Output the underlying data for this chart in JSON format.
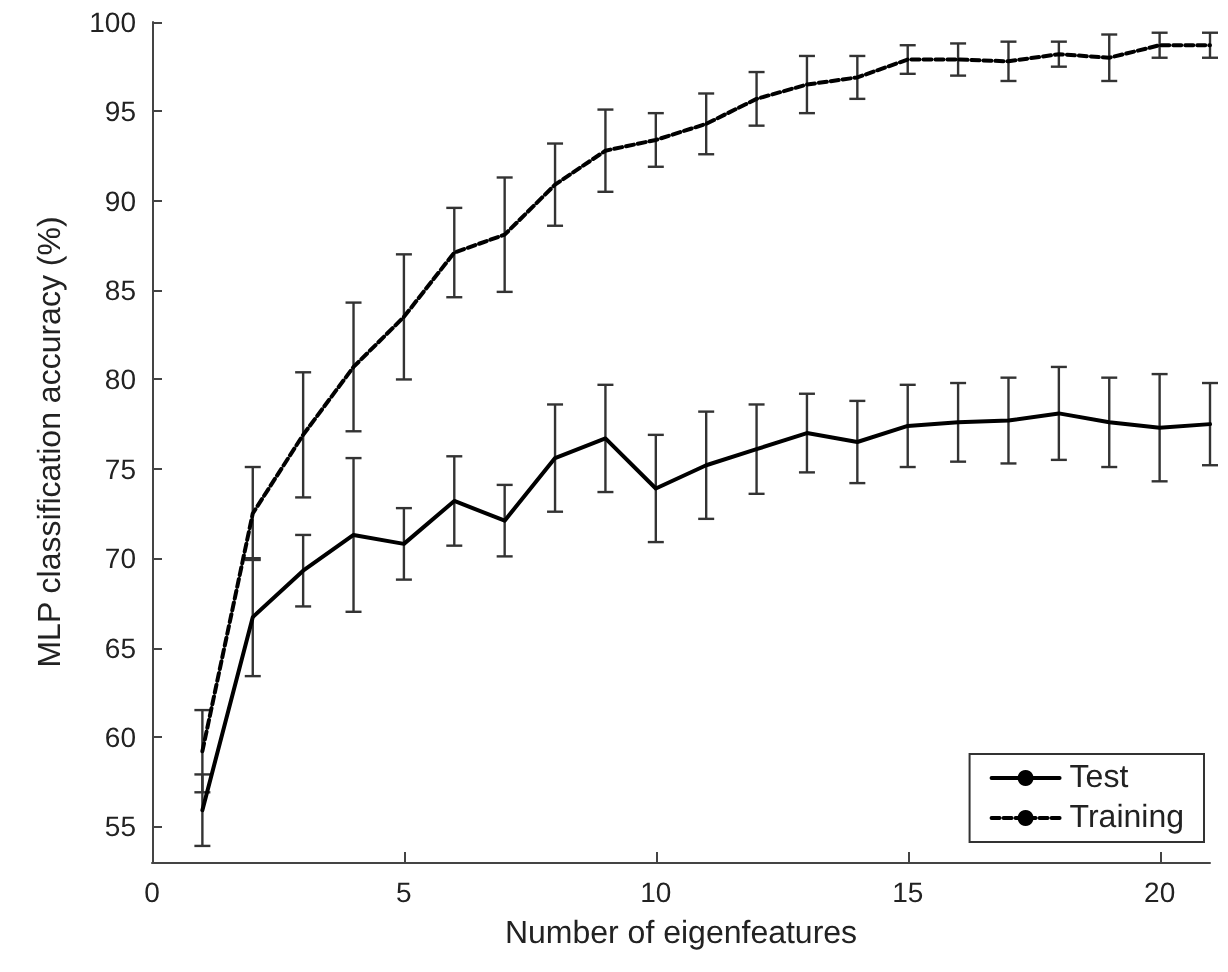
{
  "chart_data": {
    "type": "line",
    "xlabel": "Number of eigenfeatures",
    "ylabel": "MLP classification accuracy (%)",
    "x": [
      1,
      2,
      3,
      4,
      5,
      6,
      7,
      8,
      9,
      10,
      11,
      12,
      13,
      14,
      15,
      16,
      17,
      18,
      19,
      20,
      21
    ],
    "series": [
      {
        "name": "Test",
        "color": "#000000",
        "line_style": "solid",
        "values": [
          55.9,
          66.7,
          69.3,
          71.3,
          70.8,
          73.2,
          72.1,
          75.6,
          76.7,
          73.9,
          75.2,
          76.1,
          77.0,
          76.5,
          77.4,
          77.6,
          77.7,
          78.1,
          77.6,
          77.3,
          77.5
        ],
        "errors": [
          2.0,
          3.3,
          2.0,
          4.3,
          2.0,
          2.5,
          2.0,
          3.0,
          3.0,
          3.0,
          3.0,
          2.5,
          2.2,
          2.3,
          2.3,
          2.2,
          2.4,
          2.6,
          2.5,
          3.0,
          2.3
        ]
      },
      {
        "name": "Training",
        "color": "#000000",
        "line_style": "dashed",
        "values": [
          59.2,
          72.5,
          76.9,
          80.7,
          83.5,
          87.1,
          88.1,
          90.9,
          92.8,
          93.4,
          94.3,
          95.7,
          96.5,
          96.9,
          97.9,
          97.9,
          97.8,
          98.2,
          98.0,
          98.7,
          98.7
        ],
        "errors": [
          2.3,
          2.6,
          3.5,
          3.6,
          3.5,
          2.5,
          3.2,
          2.3,
          2.3,
          1.5,
          1.7,
          1.5,
          1.6,
          1.2,
          0.8,
          0.9,
          1.1,
          0.7,
          1.3,
          0.7,
          0.7
        ]
      }
    ],
    "xlim": [
      0,
      21
    ],
    "xticks": [
      0,
      5,
      10,
      15,
      20
    ],
    "ylim": [
      53,
      100
    ],
    "yticks": [
      55,
      60,
      65,
      70,
      75,
      80,
      85,
      90,
      95,
      100
    ],
    "grid": false,
    "legend": "bottom right",
    "marker": "none"
  }
}
